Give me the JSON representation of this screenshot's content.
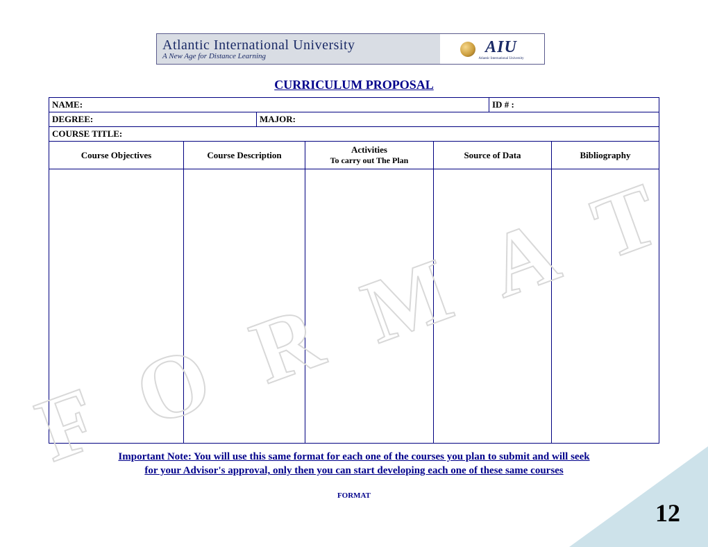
{
  "banner": {
    "university": "Atlantic International University",
    "tagline": "A New Age for Distance Learning",
    "logo_text": "AIU",
    "logo_sub": "Atlantic International University"
  },
  "title": "CURRICULUM PROPOSAL",
  "fields": {
    "name_label": "NAME:",
    "id_label": "ID # :",
    "degree_label": "DEGREE:",
    "major_label": "MAJOR:",
    "course_title_label": "COURSE TITLE:"
  },
  "columns": {
    "c1": "Course Objectives",
    "c2": "Course Description",
    "c3_line1": "Activities",
    "c3_line2": "To carry out The Plan",
    "c4": "Source of Data",
    "c5": "Bibliography"
  },
  "watermark": "FORMAT",
  "note_line1": "Important Note: You will use this same format for each one of the courses you plan to submit and will seek",
  "note_line2": "for your Advisor's approval, only then you can start developing each one of these same courses",
  "footer_label": "FORMAT",
  "page_number": "12",
  "colors": {
    "border": "#000080",
    "title": "#00008b",
    "corner": "#cde2ea",
    "banner_bg": "#d9dde4"
  }
}
